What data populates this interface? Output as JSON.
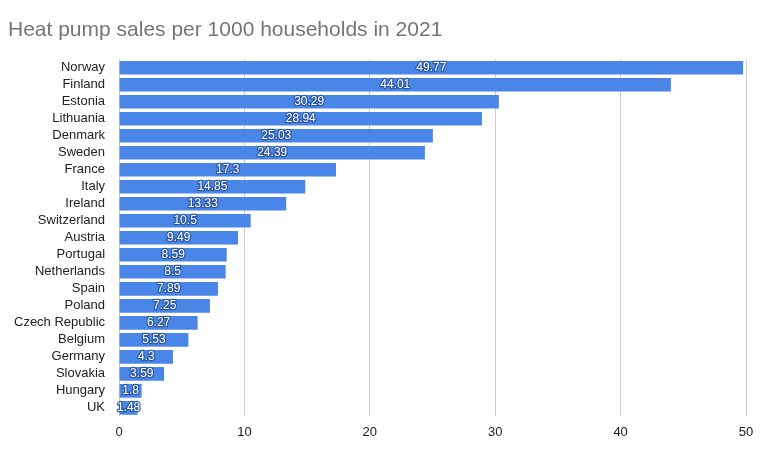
{
  "chart_data": {
    "type": "bar",
    "orientation": "horizontal",
    "title": "Heat pump sales per 1000 households in 2021",
    "categories": [
      "Norway",
      "Finland",
      "Estonia",
      "Lithuania",
      "Denmark",
      "Sweden",
      "France",
      "Italy",
      "Ireland",
      "Switzerland",
      "Austria",
      "Portugal",
      "Netherlands",
      "Spain",
      "Poland",
      "Czech Republic",
      "Belgium",
      "Germany",
      "Slovakia",
      "Hungary",
      "UK"
    ],
    "values": [
      49.77,
      44.01,
      30.29,
      28.94,
      25.03,
      24.39,
      17.3,
      14.85,
      13.33,
      10.5,
      9.49,
      8.59,
      8.5,
      7.89,
      7.25,
      6.27,
      5.53,
      4.3,
      3.59,
      1.8,
      1.48
    ],
    "color": "#4a86e8",
    "xlim": [
      0,
      50
    ],
    "xticks": [
      0,
      10,
      20,
      30,
      40,
      50
    ],
    "grid": true,
    "data_labels": true
  }
}
